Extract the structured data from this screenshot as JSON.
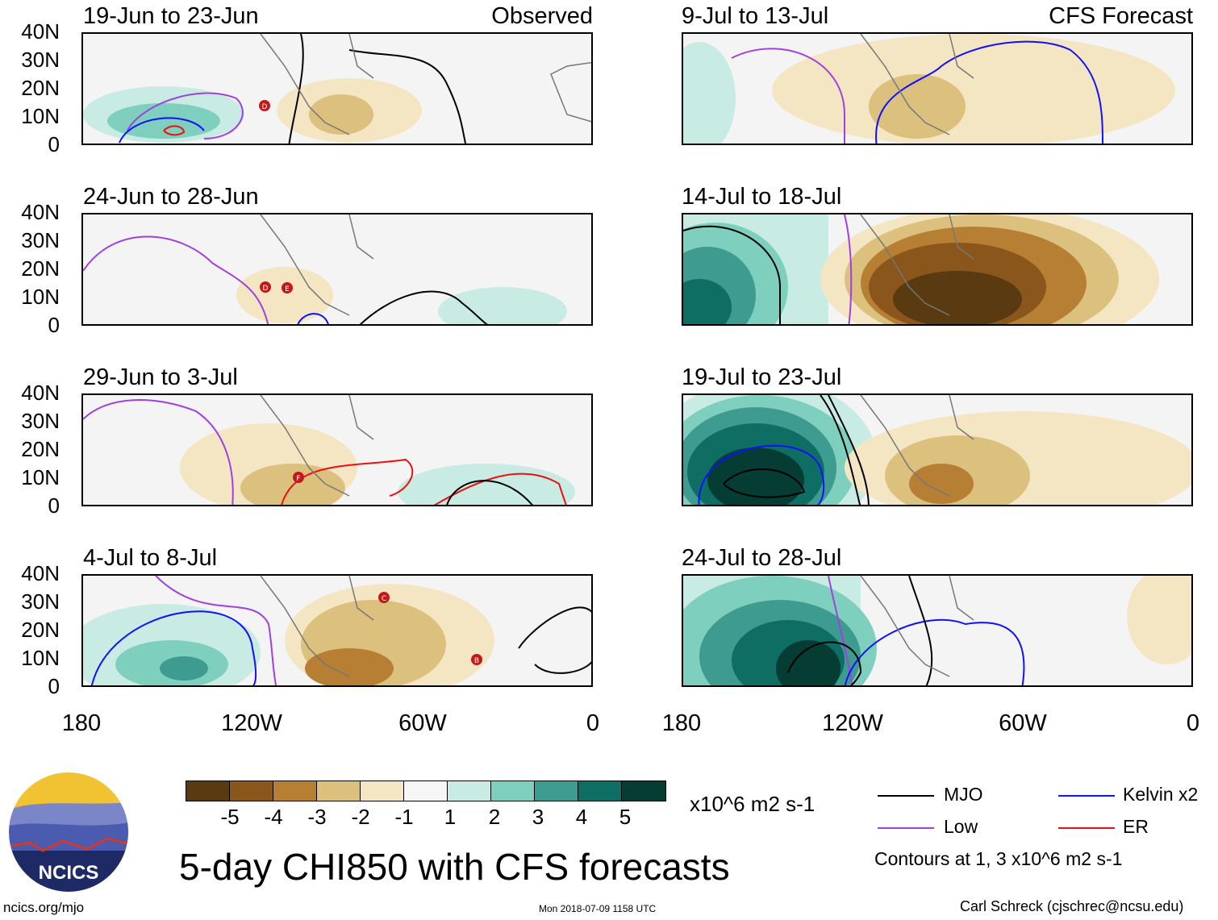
{
  "header": {
    "left_tag": "Observed",
    "right_tag": "CFS Forecast"
  },
  "panels": [
    {
      "title": "19-Jun to 23-Jun"
    },
    {
      "title": "24-Jun to 28-Jun"
    },
    {
      "title": "29-Jun to 3-Jul"
    },
    {
      "title": "4-Jul to 8-Jul"
    },
    {
      "title": "9-Jul to 13-Jul"
    },
    {
      "title": "14-Jul to 18-Jul"
    },
    {
      "title": "19-Jul to 23-Jul"
    },
    {
      "title": "24-Jul to 28-Jul"
    }
  ],
  "lat_labels": [
    "40N",
    "30N",
    "20N",
    "10N",
    "0"
  ],
  "lon_labels": [
    "180",
    "120W",
    "60W",
    "0"
  ],
  "storm_markers": [
    "D",
    "D",
    "E",
    "F",
    "C",
    "B"
  ],
  "colorbar": {
    "colors": [
      "#5a3a10",
      "#8a561c",
      "#b77f34",
      "#dcc07e",
      "#f5e6c3",
      "#f6f6f6",
      "#c8ece3",
      "#7fcfbf",
      "#3d9c8f",
      "#0e6e63",
      "#053c33"
    ],
    "labels": [
      "-5",
      "-4",
      "-3",
      "-2",
      "-1",
      "1",
      "2",
      "3",
      "4",
      "5"
    ],
    "units": "x10^6 m2 s-1"
  },
  "legend": {
    "items": [
      {
        "label": "MJO",
        "color": "#000000"
      },
      {
        "label": "Kelvin x2",
        "color": "#1010ff"
      },
      {
        "label": "Low",
        "color": "#a040e0"
      },
      {
        "label": "ER",
        "color": "#ee1010"
      }
    ],
    "note": "Contours at 1, 3 x10^6 m2 s-1"
  },
  "logo_text": "NCICS",
  "main_title": "5-day CHI850 with CFS forecasts",
  "footer": {
    "url": "ncics.org/mjo",
    "timestamp": "Mon 2018-07-09 1158 UTC",
    "author": "Carl Schreck (cjschrec@ncsu.edu)"
  }
}
